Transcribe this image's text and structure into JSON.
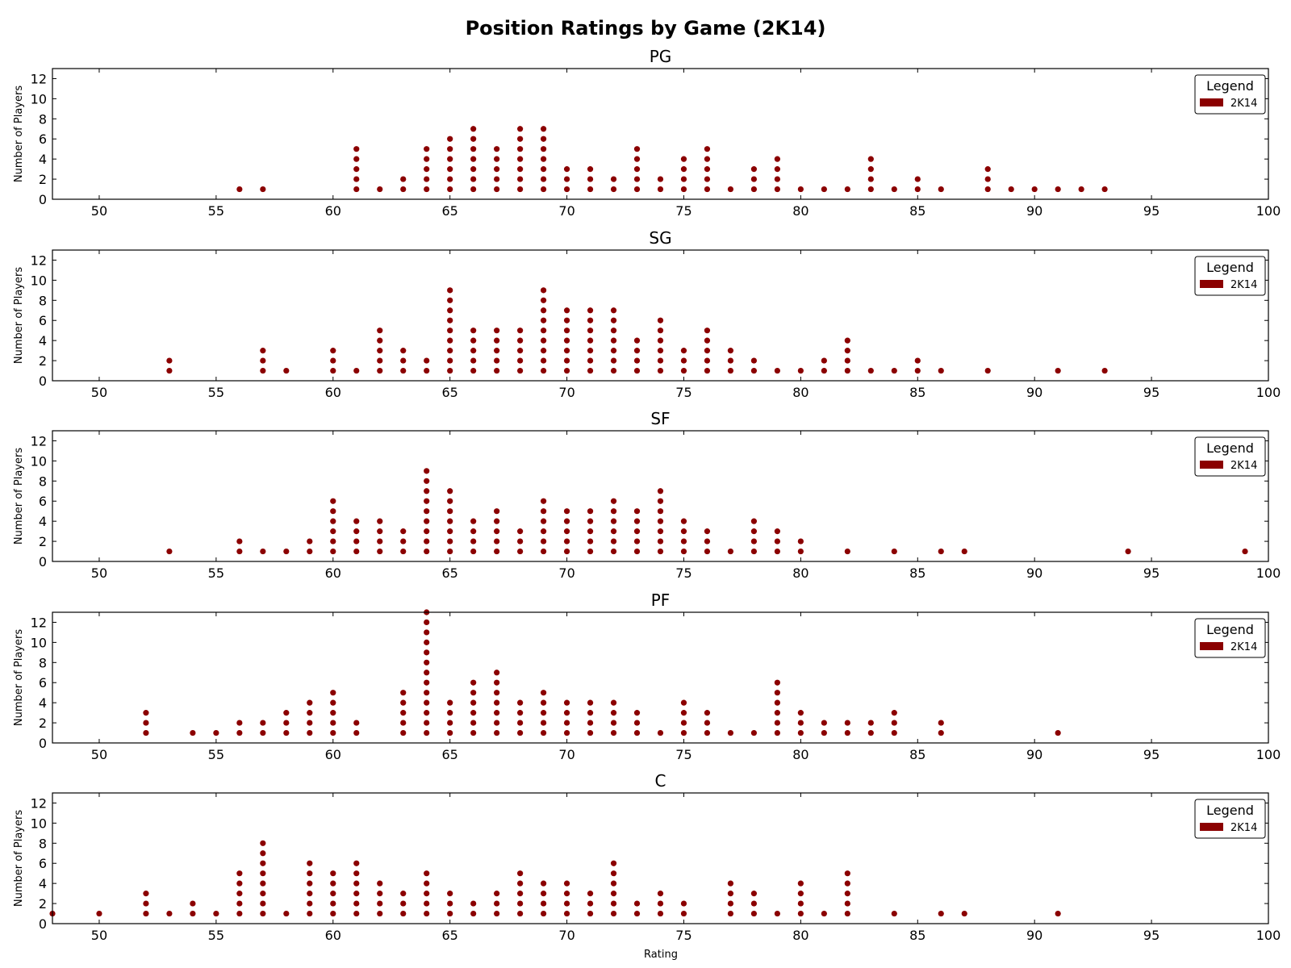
{
  "chart_data": {
    "type": "scatter",
    "title": "Position Ratings by Game (2K14)",
    "xlabel": "Rating",
    "ylabel": "Number of Players",
    "xlim": [
      48,
      100
    ],
    "ylim": [
      0,
      13
    ],
    "xticks": [
      50,
      55,
      60,
      65,
      70,
      75,
      80,
      85,
      90,
      95,
      100
    ],
    "yticks": [
      0,
      2,
      4,
      6,
      8,
      10,
      12
    ],
    "legend": {
      "title": "Legend",
      "placement": "top-right",
      "entries": [
        "2K14"
      ]
    },
    "color": "#8b0000",
    "panels": [
      {
        "title": "PG",
        "series": [
          {
            "name": "2K14",
            "x": [
              56,
              57,
              61,
              62,
              63,
              64,
              65,
              66,
              67,
              68,
              69,
              70,
              71,
              72,
              73,
              74,
              75,
              76,
              77,
              78,
              79,
              80,
              81,
              82,
              83,
              84,
              85,
              86,
              88,
              89,
              90,
              91,
              92,
              93
            ],
            "counts": [
              1,
              1,
              5,
              1,
              2,
              5,
              6,
              7,
              5,
              7,
              7,
              3,
              3,
              2,
              5,
              2,
              4,
              5,
              1,
              3,
              4,
              1,
              1,
              1,
              4,
              1,
              2,
              1,
              3,
              1,
              1,
              1,
              1,
              1
            ]
          }
        ]
      },
      {
        "title": "SG",
        "series": [
          {
            "name": "2K14",
            "x": [
              53,
              57,
              58,
              60,
              61,
              62,
              63,
              64,
              65,
              66,
              67,
              68,
              69,
              70,
              71,
              72,
              73,
              74,
              75,
              76,
              77,
              78,
              79,
              80,
              81,
              82,
              83,
              84,
              85,
              86,
              88,
              91,
              93
            ],
            "counts": [
              2,
              3,
              1,
              3,
              1,
              5,
              3,
              2,
              9,
              5,
              5,
              5,
              9,
              7,
              7,
              7,
              4,
              6,
              3,
              5,
              3,
              2,
              1,
              1,
              2,
              4,
              1,
              1,
              2,
              1,
              1,
              1,
              1
            ]
          }
        ]
      },
      {
        "title": "SF",
        "series": [
          {
            "name": "2K14",
            "x": [
              53,
              56,
              57,
              58,
              59,
              60,
              61,
              62,
              63,
              64,
              65,
              66,
              67,
              68,
              69,
              70,
              71,
              72,
              73,
              74,
              75,
              76,
              77,
              78,
              79,
              80,
              82,
              84,
              86,
              87,
              94,
              99
            ],
            "counts": [
              1,
              2,
              1,
              1,
              2,
              6,
              4,
              4,
              3,
              9,
              7,
              4,
              5,
              3,
              6,
              5,
              5,
              6,
              5,
              7,
              4,
              3,
              1,
              4,
              3,
              2,
              1,
              1,
              1,
              1,
              1,
              1
            ]
          }
        ]
      },
      {
        "title": "PF",
        "series": [
          {
            "name": "2K14",
            "x": [
              52,
              54,
              55,
              56,
              57,
              58,
              59,
              60,
              61,
              63,
              64,
              65,
              66,
              67,
              68,
              69,
              70,
              71,
              72,
              73,
              74,
              75,
              76,
              77,
              78,
              79,
              80,
              81,
              82,
              83,
              84,
              86,
              91
            ],
            "counts": [
              3,
              1,
              1,
              2,
              2,
              3,
              4,
              5,
              2,
              5,
              13,
              4,
              6,
              7,
              4,
              5,
              4,
              4,
              4,
              3,
              1,
              4,
              3,
              1,
              1,
              6,
              3,
              2,
              2,
              2,
              3,
              2,
              1
            ]
          }
        ]
      },
      {
        "title": "C",
        "series": [
          {
            "name": "2K14",
            "x": [
              48,
              50,
              52,
              53,
              54,
              55,
              56,
              57,
              58,
              59,
              60,
              61,
              62,
              63,
              64,
              65,
              66,
              67,
              68,
              69,
              70,
              71,
              72,
              73,
              74,
              75,
              77,
              78,
              79,
              80,
              81,
              82,
              84,
              86,
              87,
              91
            ],
            "counts": [
              1,
              1,
              3,
              1,
              2,
              1,
              5,
              8,
              1,
              6,
              5,
              6,
              4,
              3,
              5,
              3,
              2,
              3,
              5,
              4,
              4,
              3,
              6,
              2,
              3,
              2,
              4,
              3,
              1,
              4,
              1,
              5,
              1,
              1,
              1,
              1
            ]
          }
        ]
      }
    ]
  }
}
